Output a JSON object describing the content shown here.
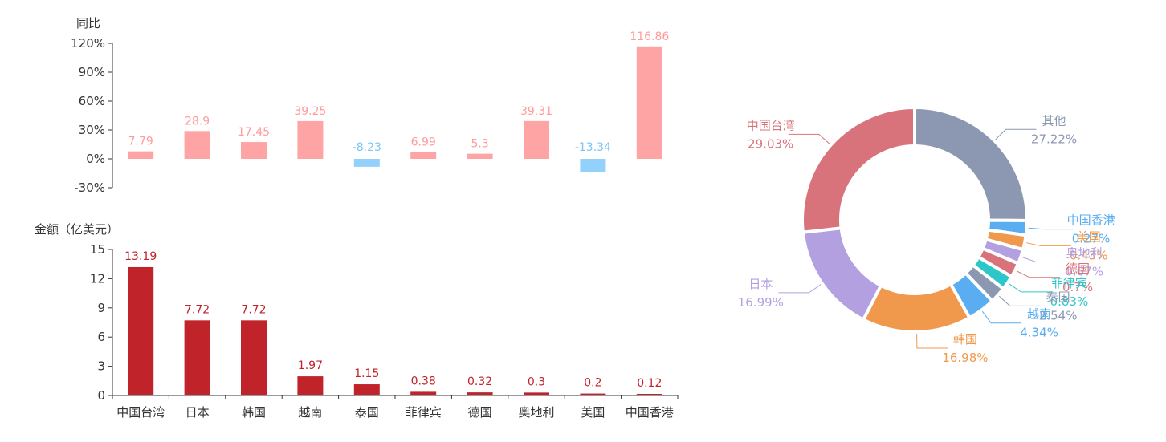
{
  "chart_data": [
    {
      "type": "bar",
      "title": "",
      "ylabel": "同比",
      "categories": [
        "中国台湾",
        "日本",
        "韩国",
        "越南",
        "泰国",
        "菲律宾",
        "德国",
        "奥地利",
        "美国",
        "中国香港"
      ],
      "values": [
        7.79,
        28.9,
        17.45,
        39.25,
        -8.23,
        6.99,
        5.3,
        39.31,
        -13.34,
        116.86
      ],
      "value_labels": [
        "7.79",
        "28.9",
        "17.45",
        "39.25",
        "-8.23",
        "6.99",
        "5.3",
        "39.31",
        "-13.34",
        "116.86"
      ],
      "ylim": [
        -30,
        120
      ],
      "yticks": [
        -30,
        0,
        30,
        60,
        90,
        120
      ],
      "ytick_labels": [
        "-30%",
        "0%",
        "30%",
        "60%",
        "90%",
        "120%"
      ],
      "colors": {
        "positive": "#ffa4a5",
        "negative": "#91d1fb",
        "positive_label": "#ff9c9c",
        "negative_label": "#79c6f5"
      }
    },
    {
      "type": "bar",
      "title": "",
      "ylabel": "金额（亿美元）",
      "categories": [
        "中国台湾",
        "日本",
        "韩国",
        "越南",
        "泰国",
        "菲律宾",
        "德国",
        "奥地利",
        "美国",
        "中国香港"
      ],
      "values": [
        13.19,
        7.72,
        7.72,
        1.97,
        1.15,
        0.38,
        0.32,
        0.3,
        0.2,
        0.12
      ],
      "value_labels": [
        "13.19",
        "7.72",
        "7.72",
        "1.97",
        "1.15",
        "0.38",
        "0.32",
        "0.3",
        "0.2",
        "0.12"
      ],
      "ylim": [
        0,
        15
      ],
      "yticks": [
        0,
        3,
        6,
        9,
        12,
        15
      ],
      "ytick_labels": [
        "0",
        "3",
        "6",
        "9",
        "12",
        "15"
      ],
      "colors": {
        "bar": "#c1232b",
        "label": "#c1232b"
      }
    },
    {
      "type": "pie",
      "donut": true,
      "title": "",
      "slices": [
        {
          "name": "其他",
          "value": 27.22,
          "label": "27.22%",
          "color": "#8c97b2"
        },
        {
          "name": "中国香港",
          "value": 0.27,
          "label": "0.27%",
          "color": "#5aadf0"
        },
        {
          "name": "美国",
          "value": 0.43,
          "label": "0.43%",
          "color": "#f0994c"
        },
        {
          "name": "奥地利",
          "value": 0.67,
          "label": "0.67%",
          "color": "#b3a0e0"
        },
        {
          "name": "德国",
          "value": 0.7,
          "label": "0.7%",
          "color": "#d9737b"
        },
        {
          "name": "菲律宾",
          "value": 0.83,
          "label": "0.83%",
          "color": "#2ec7c9"
        },
        {
          "name": "泰国",
          "value": 2.54,
          "label": "2.54%",
          "color": "#8c97b2"
        },
        {
          "name": "越南",
          "value": 4.34,
          "label": "4.34%",
          "color": "#5aadf0"
        },
        {
          "name": "韩国",
          "value": 16.98,
          "label": "16.98%",
          "color": "#f0994c"
        },
        {
          "name": "日本",
          "value": 16.99,
          "label": "16.99%",
          "color": "#b3a0e0"
        },
        {
          "name": "中国台湾",
          "value": 29.03,
          "label": "29.03%",
          "color": "#d9737b"
        }
      ]
    }
  ]
}
